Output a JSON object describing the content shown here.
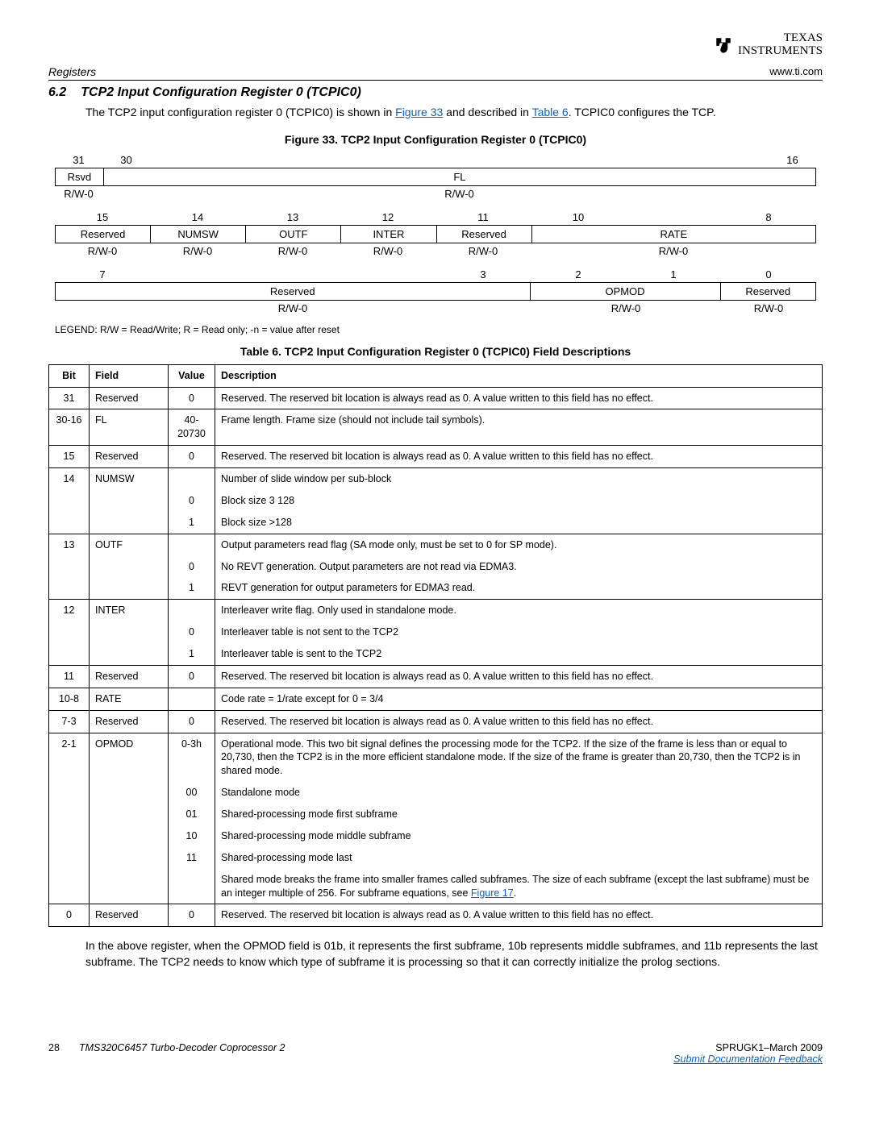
{
  "logo": {
    "line1": "TEXAS",
    "line2": "INSTRUMENTS"
  },
  "header": {
    "left": "Registers",
    "right": "www.ti.com"
  },
  "section": {
    "num": "6.2",
    "title": "TCP2 Input Configuration Register 0 (TCPIC0)"
  },
  "intro": {
    "pre": "The TCP2 input configuration register 0 (TCPIC0) is shown in ",
    "link1": "Figure 33",
    "mid": " and described in ",
    "link2": "Table 6",
    "post": ". TCPIC0 configures the TCP."
  },
  "figure_title": "Figure 33. TCP2 Input Configuration Register 0 (TCPIC0)",
  "reg": {
    "row1": {
      "bits_l": "31",
      "bits_l2": "30",
      "bits_r": "16",
      "f1": "Rsvd",
      "f2": "FL",
      "rw1": "R/W-0",
      "rw2": "R/W-0"
    },
    "row2": {
      "b15": "15",
      "b14": "14",
      "b13": "13",
      "b12": "12",
      "b11": "11",
      "b10": "10",
      "b8": "8",
      "f15": "Reserved",
      "f14": "NUMSW",
      "f13": "OUTF",
      "f12": "INTER",
      "f11": "Reserved",
      "f10_8": "RATE",
      "rw": "R/W-0"
    },
    "row3": {
      "b7": "7",
      "b3": "3",
      "b2": "2",
      "b1": "1",
      "b0": "0",
      "f7_3": "Reserved",
      "f2_1": "OPMOD",
      "f0": "Reserved",
      "rw7_3": "R/W-0",
      "rw2_1": "R/W-0",
      "rw0": "R/W-0"
    }
  },
  "legend": "LEGEND: R/W = Read/Write; R = Read only; -n = value after reset",
  "table_title": "Table 6. TCP2 Input Configuration Register 0 (TCPIC0) Field Descriptions",
  "thead": {
    "bit": "Bit",
    "field": "Field",
    "value": "Value",
    "desc": "Description"
  },
  "rows": [
    {
      "bit": "31",
      "field": "Reserved",
      "value": "0",
      "desc": "Reserved. The reserved bit location is always read as 0. A value written to this field has no effect.",
      "btop": true,
      "bbot": true
    },
    {
      "bit": "30-16",
      "field": "FL",
      "value": "40-20730",
      "desc": "Frame length. Frame size (should not include tail symbols).",
      "btop": true,
      "bbot": true
    },
    {
      "bit": "15",
      "field": "Reserved",
      "value": "0",
      "desc": "Reserved. The reserved bit location is always read as 0. A value written to this field has no effect.",
      "btop": true,
      "bbot": true
    },
    {
      "bit": "14",
      "field": "NUMSW",
      "value": "",
      "desc": "Number of slide window per sub-block",
      "btop": true,
      "bbot": false
    },
    {
      "bit": "",
      "field": "",
      "value": "0",
      "desc": "Block size 3 128",
      "btop": false,
      "bbot": false
    },
    {
      "bit": "",
      "field": "",
      "value": "1",
      "desc": "Block size >128",
      "btop": false,
      "bbot": true
    },
    {
      "bit": "13",
      "field": "OUTF",
      "value": "",
      "desc": "Output parameters read flag (SA mode only, must be set to 0 for SP mode).",
      "btop": true,
      "bbot": false
    },
    {
      "bit": "",
      "field": "",
      "value": "0",
      "desc": "No REVT generation. Output parameters are not read via EDMA3.",
      "btop": false,
      "bbot": false
    },
    {
      "bit": "",
      "field": "",
      "value": "1",
      "desc": "REVT generation for output parameters for EDMA3 read.",
      "btop": false,
      "bbot": true
    },
    {
      "bit": "12",
      "field": "INTER",
      "value": "",
      "desc": "Interleaver write flag. Only used in standalone mode.",
      "btop": true,
      "bbot": false
    },
    {
      "bit": "",
      "field": "",
      "value": "0",
      "desc": "Interleaver table is not sent to the TCP2",
      "btop": false,
      "bbot": false
    },
    {
      "bit": "",
      "field": "",
      "value": "1",
      "desc": "Interleaver table is sent to the TCP2",
      "btop": false,
      "bbot": true
    },
    {
      "bit": "11",
      "field": "Reserved",
      "value": "0",
      "desc": "Reserved. The reserved bit location is always read as 0. A value written to this field has no effect.",
      "btop": true,
      "bbot": true
    },
    {
      "bit": "10-8",
      "field": "RATE",
      "value": "",
      "desc": "Code rate = 1/rate except for 0 = 3/4",
      "btop": true,
      "bbot": true
    },
    {
      "bit": "7-3",
      "field": "Reserved",
      "value": "0",
      "desc": "Reserved. The reserved bit location is always read as 0. A value written to this field has no effect.",
      "btop": true,
      "bbot": true
    },
    {
      "bit": "2-1",
      "field": "OPMOD",
      "value": "0-3h",
      "desc": "Operational mode. This two bit signal defines the processing mode for the TCP2. If the size of the frame is less than or equal to 20,730, then the TCP2 is in the more efficient standalone mode. If the size of the frame is greater than 20,730, then the TCP2 is in shared mode.",
      "btop": true,
      "bbot": false
    },
    {
      "bit": "",
      "field": "",
      "value": "00",
      "desc": "Standalone mode",
      "btop": false,
      "bbot": false
    },
    {
      "bit": "",
      "field": "",
      "value": "01",
      "desc": "Shared-processing mode first subframe",
      "btop": false,
      "bbot": false
    },
    {
      "bit": "",
      "field": "",
      "value": "10",
      "desc": "Shared-processing mode middle subframe",
      "btop": false,
      "bbot": false
    },
    {
      "bit": "",
      "field": "",
      "value": "11",
      "desc": "Shared-processing mode last",
      "btop": false,
      "bbot": false
    },
    {
      "bit": "",
      "field": "",
      "value": "",
      "desc": "Shared mode breaks the frame into smaller frames called subframes. The size of each subframe (except the last subframe) must be an integer multiple of 256. For subframe equations, see ",
      "link": "Figure 17",
      "post": ".",
      "btop": false,
      "bbot": true
    },
    {
      "bit": "0",
      "field": "Reserved",
      "value": "0",
      "desc": "Reserved. The reserved bit location is always read as 0. A value written to this field has no effect.",
      "btop": true,
      "bbot": true
    }
  ],
  "post_note": "In the above register, when the OPMOD field is 01b, it represents the first subframe, 10b represents middle subframes, and 11b represents the last subframe. The TCP2 needs to know which type of subframe it is processing so that it can correctly initialize the prolog sections.",
  "footer": {
    "page": "28",
    "doc_title": "TMS320C6457 Turbo-Decoder Coprocessor 2",
    "doc_id": "SPRUGK1–March 2009",
    "feedback": "Submit Documentation Feedback"
  }
}
